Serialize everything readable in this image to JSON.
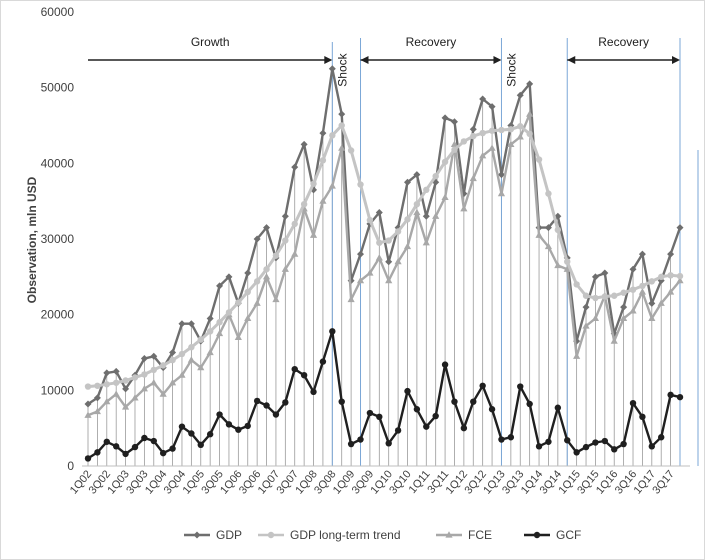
{
  "chart_data": {
    "type": "line",
    "title": "",
    "xlabel": "",
    "ylabel": "Observation, mln USD",
    "ylim": [
      0,
      60000
    ],
    "yticks": [
      0,
      10000,
      20000,
      30000,
      40000,
      50000,
      60000
    ],
    "x_tick_labels": [
      "1Q02",
      "3Q02",
      "1Q03",
      "3Q03",
      "1Q04",
      "3Q04",
      "1Q05",
      "3Q05",
      "1Q06",
      "3Q06",
      "1Q07",
      "3Q07",
      "1Q08",
      "3Q08",
      "1Q09",
      "3Q09",
      "1Q10",
      "3Q10",
      "1Q11",
      "3Q11",
      "1Q12",
      "3Q12",
      "1Q13",
      "3Q13",
      "1Q14",
      "3Q14",
      "1Q15",
      "3Q15",
      "1Q16",
      "3Q16",
      "1Q17",
      "3Q17"
    ],
    "x": [
      "1Q02",
      "2Q02",
      "3Q02",
      "4Q02",
      "1Q03",
      "2Q03",
      "3Q03",
      "4Q03",
      "1Q04",
      "2Q04",
      "3Q04",
      "4Q04",
      "1Q05",
      "2Q05",
      "3Q05",
      "4Q05",
      "1Q06",
      "2Q06",
      "3Q06",
      "4Q06",
      "1Q07",
      "2Q07",
      "3Q07",
      "4Q07",
      "1Q08",
      "2Q08",
      "3Q08",
      "4Q08",
      "1Q09",
      "2Q09",
      "3Q09",
      "4Q09",
      "1Q10",
      "2Q10",
      "3Q10",
      "4Q10",
      "1Q11",
      "2Q11",
      "3Q11",
      "4Q11",
      "1Q12",
      "2Q12",
      "3Q12",
      "4Q12",
      "1Q13",
      "2Q13",
      "3Q13",
      "4Q13",
      "1Q14",
      "2Q14",
      "3Q14",
      "4Q14",
      "1Q15",
      "2Q15",
      "3Q15",
      "4Q15",
      "1Q16",
      "2Q16",
      "3Q16",
      "4Q16",
      "1Q17",
      "2Q17",
      "3Q17",
      "4Q17"
    ],
    "series": [
      {
        "name": "GDP",
        "color": "#6e6e6e",
        "marker": "diamond",
        "values": [
          8200,
          9000,
          12300,
          12500,
          10200,
          12000,
          14200,
          14500,
          13000,
          15000,
          18800,
          18800,
          16500,
          19500,
          23800,
          25000,
          21500,
          25500,
          30000,
          31500,
          27500,
          33000,
          39500,
          42500,
          36500,
          44000,
          52500,
          46500,
          24500,
          28000,
          32000,
          33500,
          27000,
          31500,
          37500,
          38500,
          33000,
          37500,
          46000,
          45500,
          36000,
          44500,
          48500,
          47500,
          38500,
          45000,
          49000,
          50500,
          31500,
          31500,
          33000,
          27500,
          16500,
          21000,
          25000,
          25500,
          17500,
          21000,
          26000,
          28000,
          21500,
          24500,
          28000,
          31500
        ]
      },
      {
        "name": "GDP long-term trend",
        "color": "#c4c4c4",
        "marker": "circle",
        "values": [
          10500,
          10600,
          10800,
          11000,
          11300,
          11700,
          12100,
          12700,
          13300,
          14000,
          14800,
          15700,
          16700,
          17800,
          19000,
          20300,
          21600,
          23000,
          24400,
          26000,
          27800,
          29800,
          32000,
          34600,
          37300,
          40400,
          43700,
          45000,
          41700,
          37200,
          32500,
          29500,
          29800,
          31000,
          32600,
          34600,
          36500,
          38300,
          40200,
          41800,
          42900,
          43600,
          44000,
          44300,
          44400,
          44500,
          44900,
          43900,
          40500,
          36000,
          31200,
          27000,
          24000,
          22500,
          22200,
          22400,
          22500,
          22900,
          23300,
          23800,
          24400,
          25000,
          25200,
          25100
        ]
      },
      {
        "name": "FCE",
        "color": "#a8a8a8",
        "marker": "triangle",
        "values": [
          6700,
          7200,
          8500,
          9500,
          7800,
          9000,
          10200,
          11000,
          9500,
          11000,
          12000,
          14000,
          13000,
          15000,
          17500,
          20000,
          17000,
          19500,
          21500,
          25000,
          22000,
          26000,
          28000,
          34000,
          30500,
          35000,
          37000,
          42000,
          22000,
          24500,
          25500,
          27500,
          24500,
          27000,
          29000,
          33500,
          29500,
          33000,
          35500,
          42500,
          34000,
          38000,
          41000,
          42000,
          36000,
          42500,
          43500,
          46500,
          30500,
          29000,
          26500,
          26000,
          14500,
          18500,
          19500,
          22500,
          16500,
          19500,
          20500,
          23000,
          19500,
          21500,
          23000,
          24500
        ]
      },
      {
        "name": "GCF",
        "color": "#1f1f1f",
        "marker": "circle",
        "values": [
          1000,
          1800,
          3200,
          2600,
          1600,
          2500,
          3700,
          3300,
          1700,
          2300,
          5200,
          4300,
          2800,
          4200,
          6800,
          5500,
          4800,
          5300,
          8600,
          8000,
          6800,
          8400,
          12800,
          12000,
          9800,
          13800,
          17800,
          8500,
          2900,
          3500,
          7000,
          6500,
          3000,
          4700,
          9900,
          7500,
          5200,
          6600,
          13400,
          8500,
          5000,
          8500,
          10600,
          7500,
          3500,
          3800,
          10500,
          8200,
          2600,
          3200,
          7700,
          3400,
          1800,
          2500,
          3100,
          3300,
          2200,
          2900,
          8300,
          6500,
          2600,
          3800,
          9400,
          9100
        ]
      }
    ],
    "annotations": [
      {
        "text": "Growth",
        "from": "1Q02",
        "to": "3Q08"
      },
      {
        "text": "Shock",
        "at": "3Q08"
      },
      {
        "text": "Recovery",
        "from": "2Q09",
        "to": "1Q13"
      },
      {
        "text": "Shock",
        "at": "1Q13"
      },
      {
        "text": "Recovery",
        "from": "4Q14",
        "to": "4Q17"
      }
    ],
    "grid": false,
    "drop_lines": true,
    "legend_position": "bottom"
  }
}
